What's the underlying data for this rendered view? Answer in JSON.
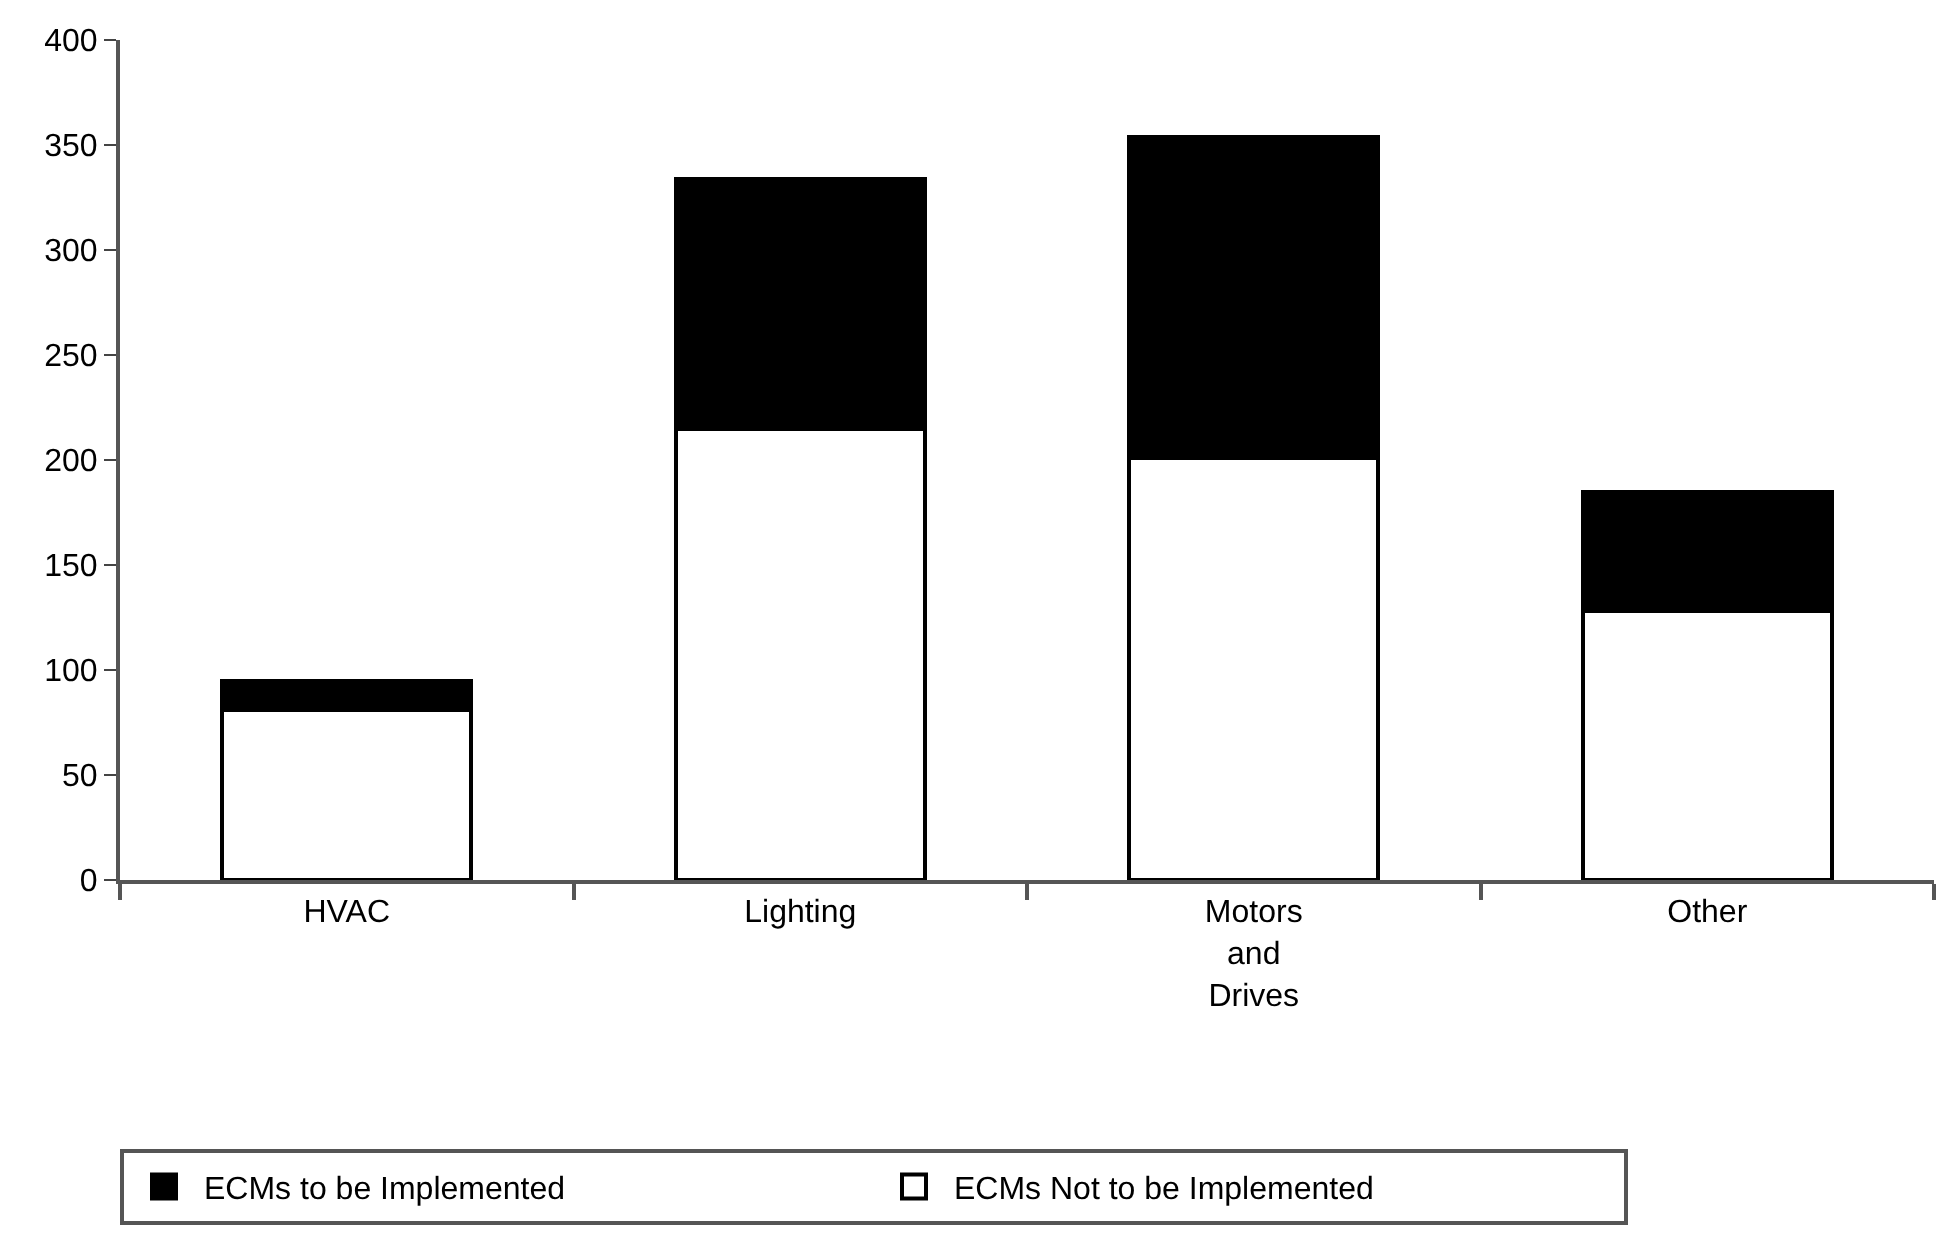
{
  "chart_data": {
    "type": "bar",
    "stacked": true,
    "categories": [
      "HVAC",
      "Lighting",
      "Motors and Drives",
      "Other"
    ],
    "series": [
      {
        "name": "ECMs Not to be Implemented",
        "color": "#ffffff",
        "values": [
          81,
          215,
          201,
          128
        ]
      },
      {
        "name": "ECMs to be Implemented",
        "color": "#000000",
        "values": [
          14,
          119,
          153,
          57
        ]
      }
    ],
    "ylim": [
      0,
      400
    ],
    "yticks": [
      0,
      50,
      100,
      150,
      200,
      250,
      300,
      350,
      400
    ],
    "legend": "bottom"
  }
}
